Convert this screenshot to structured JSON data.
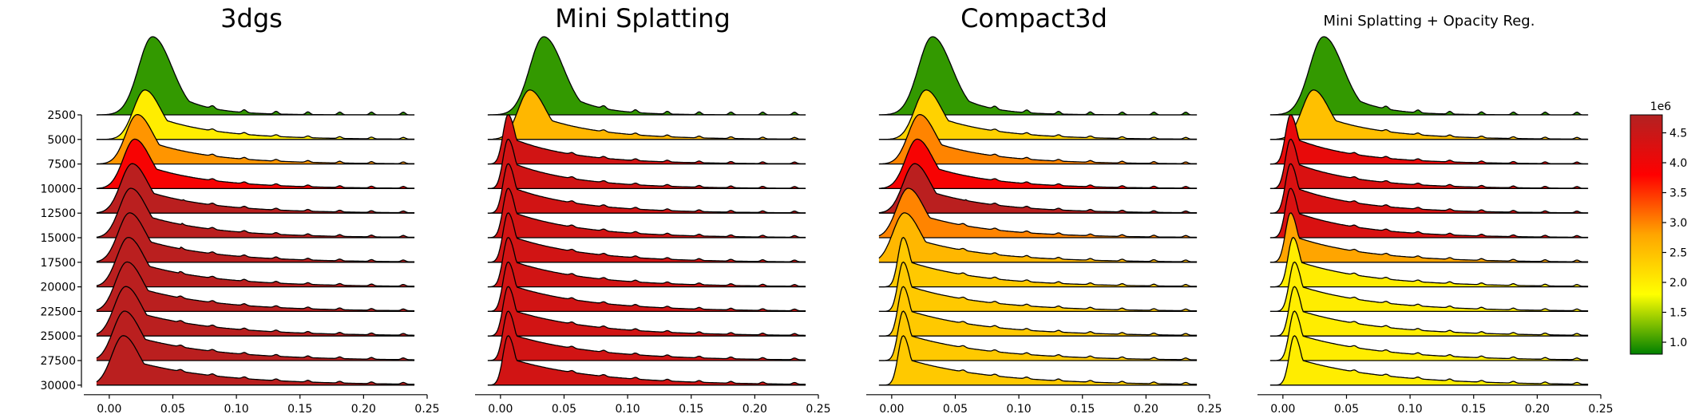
{
  "colorbar": {
    "offset_label": "1e6",
    "ticks": [
      1.0,
      1.5,
      2.0,
      2.5,
      3.0,
      3.5,
      4.0,
      4.5
    ],
    "tick_labels": [
      "1.0",
      "1.5",
      "2.0",
      "2.5",
      "3.0",
      "3.5",
      "4.0",
      "4.5"
    ],
    "range": [
      0.8,
      4.8
    ],
    "colors": [
      "#008000",
      "#ffff00",
      "#ffa500",
      "#ff0000",
      "#b22222"
    ]
  },
  "chart_data": [
    {
      "type": "ridgeline",
      "title": "3dgs",
      "rows": [
        2500,
        5000,
        7500,
        10000,
        12500,
        15000,
        17500,
        20000,
        22500,
        25000,
        27500,
        30000
      ],
      "row_labels": [
        "2500",
        "5000",
        "7500",
        "10000",
        "12500",
        "15000",
        "17500",
        "20000",
        "22500",
        "25000",
        "27500",
        "30000"
      ],
      "x_ticks": [
        0.0,
        0.05,
        0.1,
        0.15,
        0.2,
        0.25
      ],
      "x_tick_labels": [
        "0.00",
        "0.05",
        "0.10",
        "0.15",
        "0.20",
        "0.25"
      ],
      "xlim": [
        -0.02,
        0.25
      ],
      "data_range": [
        -0.01,
        0.24
      ],
      "peak_x": [
        0.034,
        0.028,
        0.022,
        0.02,
        0.018,
        0.017,
        0.016,
        0.015,
        0.014,
        0.013,
        0.012,
        0.011
      ],
      "color_values": [
        1.0,
        2.0,
        2.9,
        3.9,
        4.7,
        4.7,
        4.7,
        4.7,
        4.7,
        4.7,
        4.7,
        4.7
      ]
    },
    {
      "type": "ridgeline",
      "title": "Mini Splatting",
      "rows": [
        2500,
        5000,
        7500,
        10000,
        12500,
        15000,
        17500,
        20000,
        22500,
        25000,
        27500,
        30000
      ],
      "row_labels": [],
      "x_ticks": [
        0.0,
        0.05,
        0.1,
        0.15,
        0.2,
        0.25
      ],
      "x_tick_labels": [
        "0.00",
        "0.05",
        "0.10",
        "0.15",
        "0.20",
        "0.25"
      ],
      "xlim": [
        -0.02,
        0.25
      ],
      "data_range": [
        -0.01,
        0.24
      ],
      "peak_x": [
        0.034,
        0.023,
        0.006,
        0.006,
        0.006,
        0.006,
        0.006,
        0.006,
        0.006,
        0.006,
        0.006,
        0.006
      ],
      "color_values": [
        1.0,
        2.6,
        4.4,
        4.4,
        4.4,
        4.4,
        4.4,
        4.4,
        4.4,
        4.4,
        4.4,
        4.4
      ]
    },
    {
      "type": "ridgeline",
      "title": "Compact3d",
      "rows": [
        2500,
        5000,
        7500,
        10000,
        12500,
        15000,
        17500,
        20000,
        22500,
        25000,
        27500,
        30000
      ],
      "row_labels": [],
      "x_ticks": [
        0.0,
        0.05,
        0.1,
        0.15,
        0.2,
        0.25
      ],
      "x_tick_labels": [
        "0.00",
        "0.05",
        "0.10",
        "0.15",
        "0.20",
        "0.25"
      ],
      "xlim": [
        -0.02,
        0.25
      ],
      "data_range": [
        -0.01,
        0.24
      ],
      "peak_x": [
        0.032,
        0.027,
        0.022,
        0.02,
        0.018,
        0.013,
        0.01,
        0.009,
        0.009,
        0.009,
        0.009,
        0.009
      ],
      "color_values": [
        1.0,
        2.3,
        3.0,
        3.9,
        4.7,
        3.0,
        2.6,
        2.4,
        2.4,
        2.4,
        2.4,
        2.4
      ]
    },
    {
      "type": "ridgeline",
      "title": "Mini Splatting + Opacity Reg.",
      "rows": [
        2500,
        5000,
        7500,
        10000,
        12500,
        15000,
        17500,
        20000,
        22500,
        25000,
        27500,
        30000
      ],
      "row_labels": [],
      "x_ticks": [
        0.0,
        0.05,
        0.1,
        0.15,
        0.2,
        0.25
      ],
      "x_tick_labels": [
        "0.00",
        "0.05",
        "0.10",
        "0.15",
        "0.20",
        "0.25"
      ],
      "xlim": [
        -0.02,
        0.25
      ],
      "data_range": [
        -0.01,
        0.24
      ],
      "peak_x": [
        0.032,
        0.024,
        0.006,
        0.006,
        0.006,
        0.006,
        0.006,
        0.008,
        0.009,
        0.009,
        0.009,
        0.009
      ],
      "color_values": [
        1.0,
        2.5,
        4.1,
        4.3,
        4.3,
        4.3,
        2.8,
        2.0,
        2.0,
        2.0,
        2.0,
        2.0
      ]
    }
  ]
}
